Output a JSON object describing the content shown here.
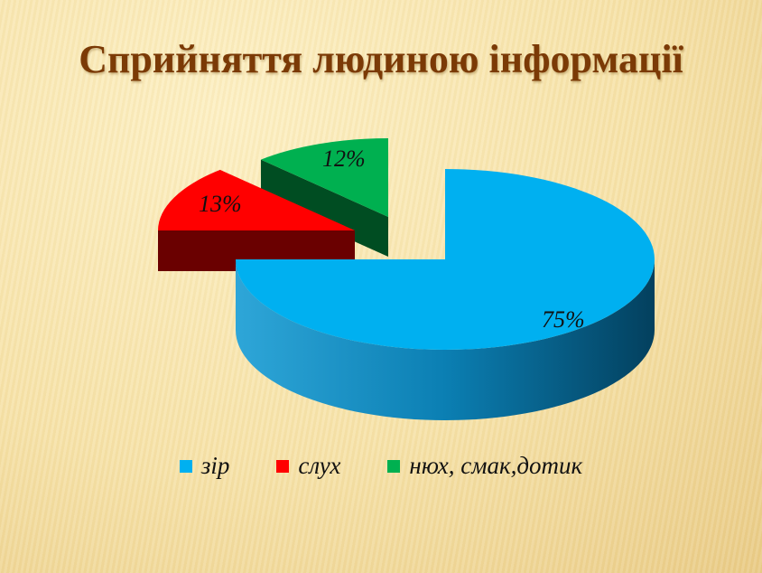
{
  "chart_data": {
    "type": "pie",
    "title": "Сприйняття людиною інформації",
    "categories": [
      "зір",
      "слух",
      "нюх, смак,дотик"
    ],
    "values": [
      75,
      13,
      12
    ],
    "labels": [
      "75%",
      "13%",
      "12%"
    ],
    "colors": [
      "#00b0f0",
      "#ff0000",
      "#00b050"
    ],
    "side_colors": [
      "#0a6c94",
      "#6a0000",
      "#004d22"
    ],
    "three_d": true,
    "exploded": [
      "слух",
      "нюх, смак,дотик"
    ],
    "legend": "bottom"
  }
}
